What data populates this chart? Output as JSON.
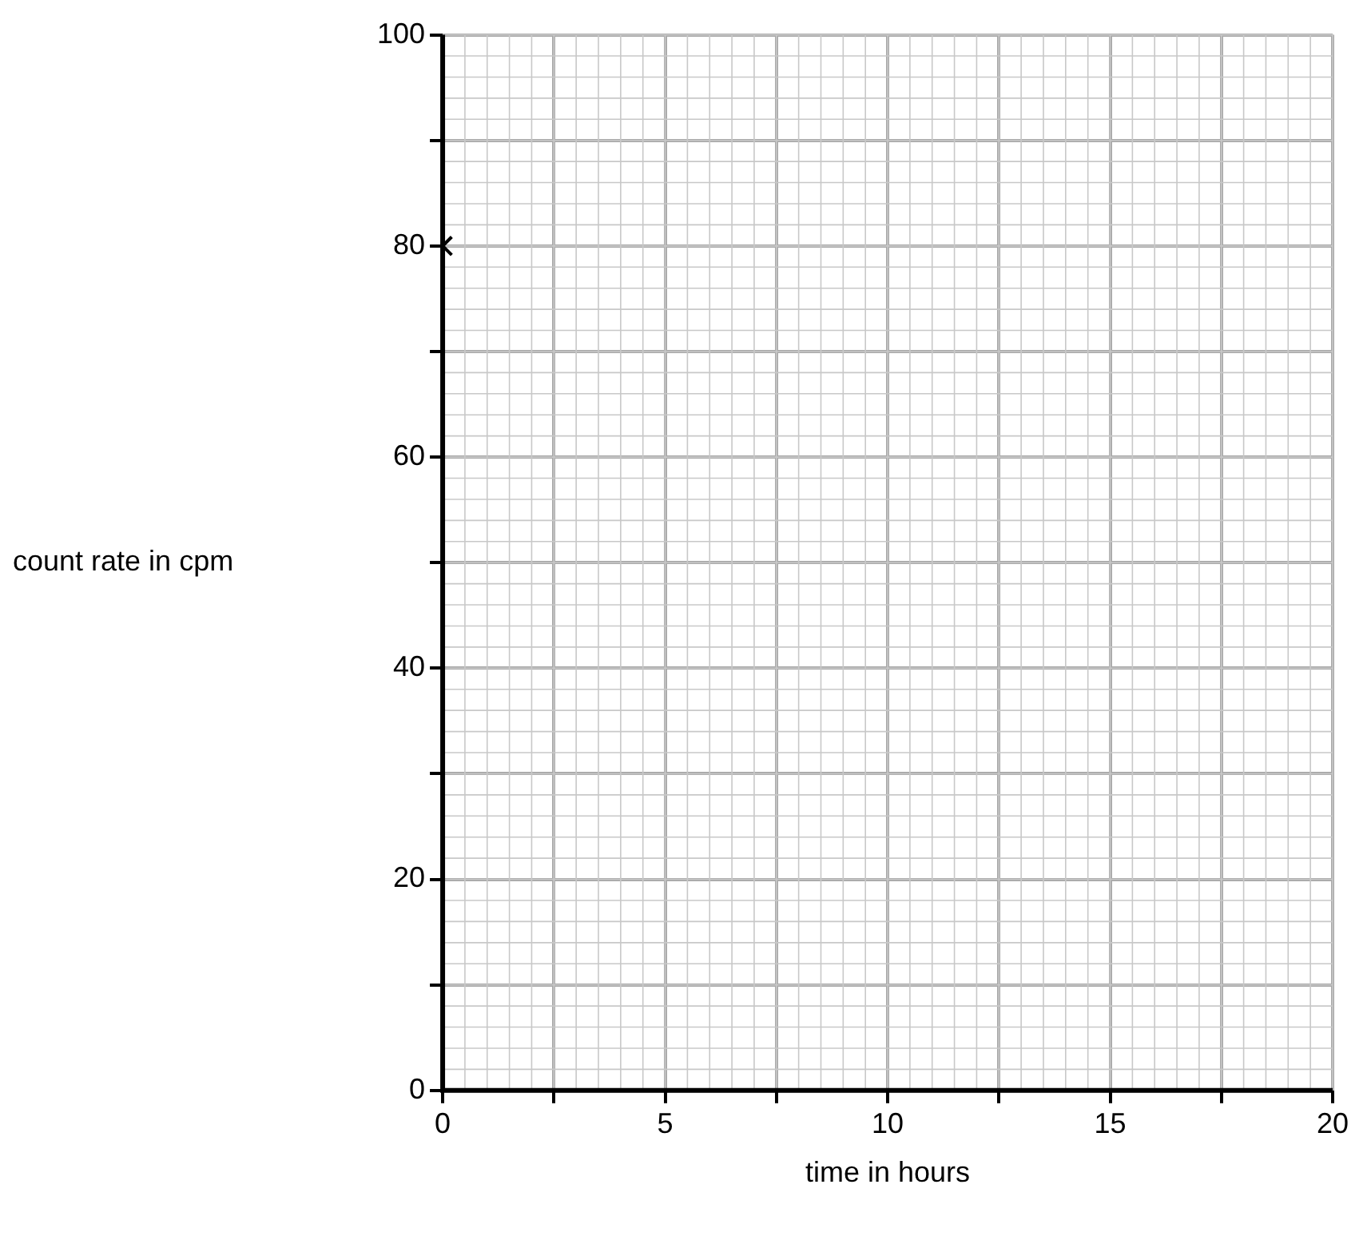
{
  "chart_data": {
    "type": "scatter",
    "xlabel": "time in hours",
    "ylabel": "count rate in cpm",
    "x": [
      0
    ],
    "values": [
      80
    ],
    "color": "#000000",
    "marker": "cross",
    "xlim": [
      0,
      20
    ],
    "ylim": [
      0,
      100
    ],
    "xticks": [
      0,
      {
        "value": 2.5,
        "label": null
      },
      5,
      {
        "value": 7.5,
        "label": null
      },
      10,
      {
        "value": 12.5,
        "label": null
      },
      15,
      {
        "value": 17.5,
        "label": null
      },
      20
    ],
    "yticks": [
      0,
      {
        "value": 10,
        "label": null
      },
      20,
      {
        "value": 30,
        "label": null
      },
      40,
      {
        "value": 50,
        "label": null
      },
      60,
      {
        "value": 70,
        "label": null
      },
      80,
      {
        "value": 90,
        "label": null
      },
      100
    ],
    "grid": true
  }
}
